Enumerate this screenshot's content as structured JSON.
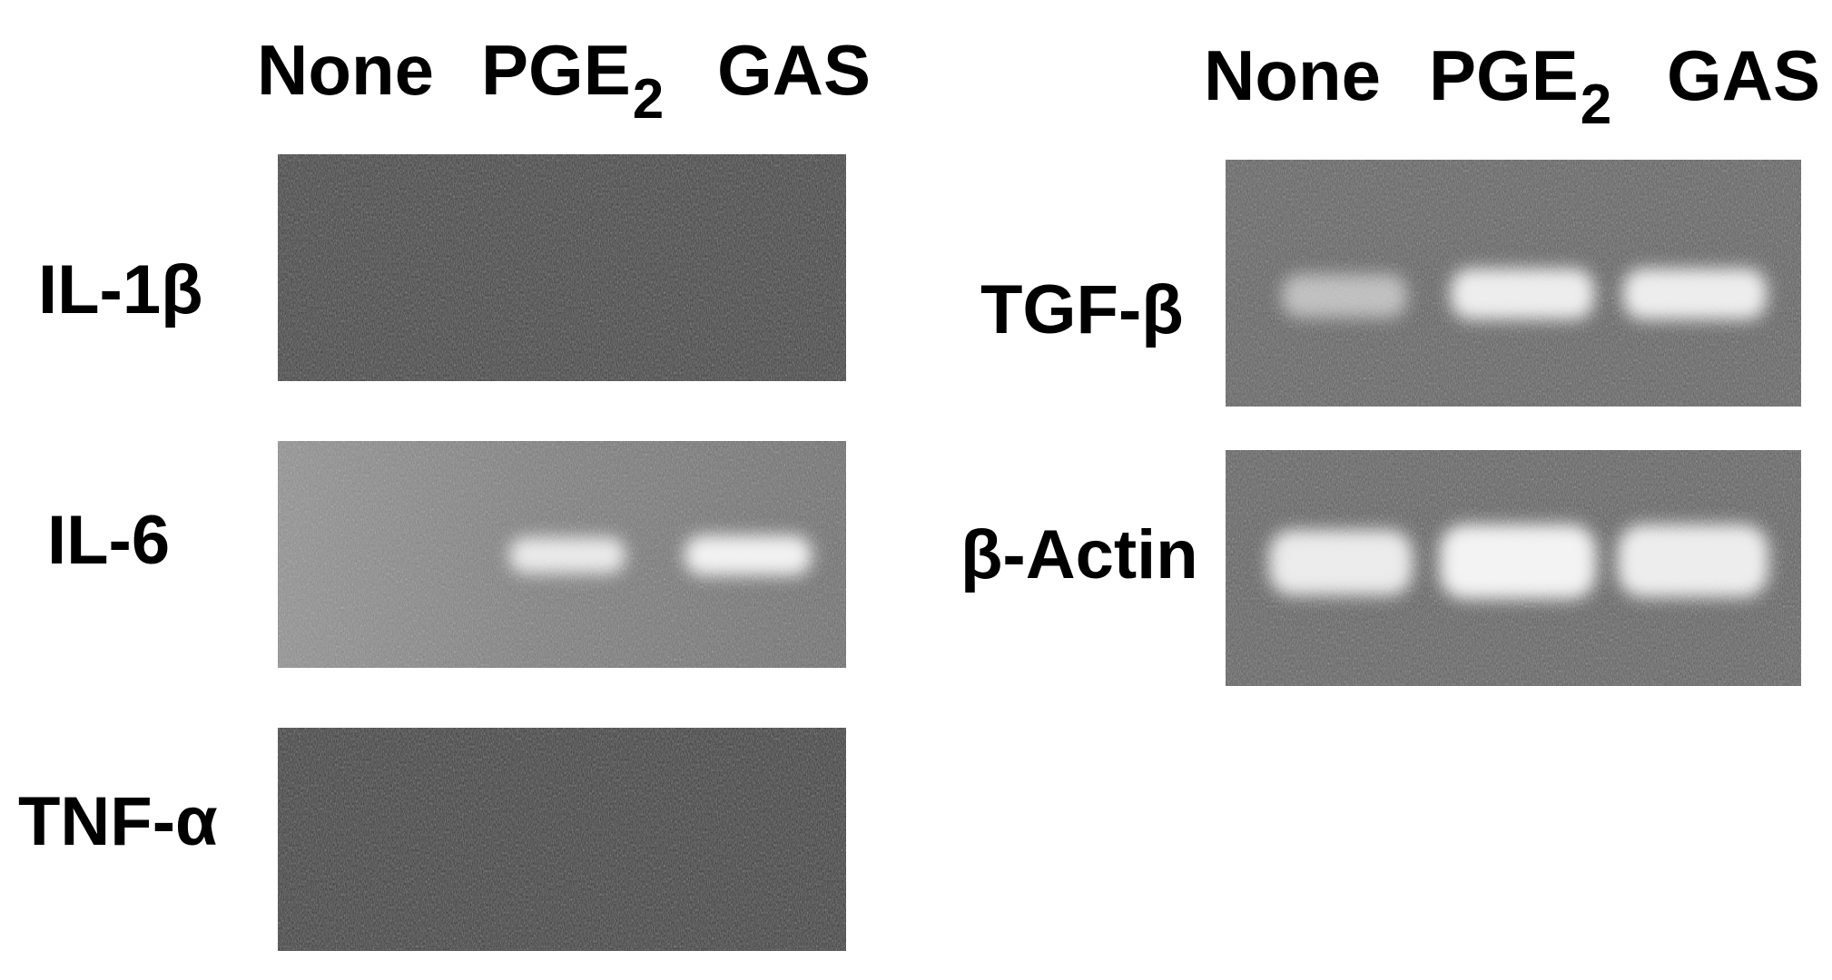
{
  "left_panel": {
    "lanes": [
      {
        "base": "None",
        "sub": ""
      },
      {
        "base": "PGE",
        "sub": "2"
      },
      {
        "base": "GAS",
        "sub": ""
      }
    ],
    "rows": [
      {
        "label": "IL-1β",
        "bands": [
          0,
          0,
          0
        ]
      },
      {
        "label": "IL-6",
        "bands": [
          0,
          0.7,
          0.85
        ]
      },
      {
        "label": "TNF-α",
        "bands": [
          0,
          0,
          0
        ]
      }
    ]
  },
  "right_panel": {
    "lanes": [
      {
        "base": "None",
        "sub": ""
      },
      {
        "base": "PGE",
        "sub": "2"
      },
      {
        "base": "GAS",
        "sub": ""
      }
    ],
    "rows": [
      {
        "label": "TGF-β",
        "bands": [
          0.55,
          0.85,
          0.85
        ]
      },
      {
        "label": "β-Actin",
        "bands": [
          0.9,
          0.95,
          0.9
        ]
      }
    ]
  }
}
